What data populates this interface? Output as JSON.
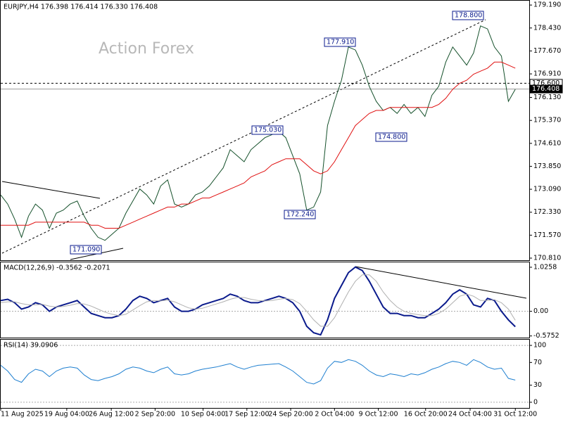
{
  "chart_data": [
    {
      "type": "line",
      "title": "EURJPY,H4  176.398 176.414 176.330 176.408",
      "watermark": "Action Forex",
      "xlim": [
        0,
        76
      ],
      "ylim": [
        170.74,
        179.31
      ],
      "yticks": [
        {
          "value": 170.81,
          "label": "170.810"
        },
        {
          "value": 171.57,
          "label": "171.570"
        },
        {
          "value": 172.33,
          "label": "172.330"
        },
        {
          "value": 173.09,
          "label": "173.090"
        },
        {
          "value": 173.85,
          "label": "173.850"
        },
        {
          "value": 174.61,
          "label": "174.610"
        },
        {
          "value": 175.37,
          "label": "175.370"
        },
        {
          "value": 176.13,
          "label": "176.130"
        },
        {
          "value": 176.91,
          "label": "176.910"
        },
        {
          "value": 177.67,
          "label": "177.670"
        },
        {
          "value": 178.43,
          "label": "178.430"
        },
        {
          "value": 179.19,
          "label": "179.190"
        }
      ],
      "price_labels": [
        {
          "value": 176.6,
          "label": "176.600"
        },
        {
          "value": 176.408,
          "label": "176.408"
        }
      ],
      "annotations": [
        "178.800",
        "177.910",
        "175.030",
        "174.800",
        "172.240",
        "171.090"
      ],
      "series": [
        {
          "color": "#14502a",
          "values": [
            172.9,
            172.6,
            172.1,
            171.5,
            172.2,
            172.6,
            172.4,
            171.8,
            172.3,
            172.4,
            172.6,
            172.7,
            172.2,
            171.8,
            171.5,
            171.4,
            171.6,
            171.8,
            172.3,
            172.7,
            173.1,
            172.9,
            172.6,
            173.2,
            173.4,
            172.6,
            172.5,
            172.6,
            172.9,
            173.0,
            173.2,
            173.5,
            173.8,
            174.4,
            174.2,
            174.0,
            174.4,
            174.6,
            174.8,
            174.9,
            175.0,
            174.8,
            174.2,
            173.6,
            172.4,
            172.5,
            173.0,
            175.2,
            176.0,
            176.7,
            177.8,
            177.7,
            177.2,
            176.5,
            176.0,
            175.7,
            175.8,
            175.6,
            175.9,
            175.6,
            175.8,
            175.5,
            176.2,
            176.5,
            177.3,
            177.8,
            177.5,
            177.2,
            177.6,
            178.5,
            178.4,
            177.8,
            177.5,
            176.0,
            176.4
          ]
        },
        {
          "color": "#e01010",
          "values": [
            171.9,
            171.9,
            171.9,
            171.9,
            171.9,
            172.0,
            172.0,
            172.0,
            172.0,
            172.0,
            172.0,
            172.0,
            172.0,
            171.9,
            171.9,
            171.8,
            171.8,
            171.8,
            171.9,
            172.0,
            172.1,
            172.2,
            172.3,
            172.4,
            172.5,
            172.5,
            172.6,
            172.6,
            172.7,
            172.8,
            172.8,
            172.9,
            173.0,
            173.1,
            173.2,
            173.3,
            173.5,
            173.6,
            173.7,
            173.9,
            174.0,
            174.1,
            174.1,
            174.1,
            173.9,
            173.7,
            173.6,
            173.7,
            174.0,
            174.4,
            174.8,
            175.2,
            175.4,
            175.6,
            175.7,
            175.7,
            175.8,
            175.8,
            175.8,
            175.8,
            175.8,
            175.8,
            175.8,
            175.9,
            176.1,
            176.4,
            176.6,
            176.7,
            176.9,
            177.0,
            177.1,
            177.3,
            177.3,
            177.2,
            177.1
          ]
        }
      ]
    },
    {
      "type": "line",
      "title": "MACD(12,26,9) -0.3562 -0.2071",
      "xlim": [
        0,
        76
      ],
      "ylim": [
        -0.63,
        1.14
      ],
      "yticks": [
        1.0258,
        {
          "value": 0,
          "label": "0.00"
        },
        -0.5752
      ],
      "series": [
        {
          "color": "#0a1a8c",
          "values": [
            0.25,
            0.28,
            0.2,
            0.05,
            0.1,
            0.2,
            0.15,
            0.0,
            0.1,
            0.15,
            0.2,
            0.25,
            0.1,
            -0.05,
            -0.1,
            -0.15,
            -0.15,
            -0.1,
            0.05,
            0.25,
            0.35,
            0.3,
            0.2,
            0.25,
            0.3,
            0.1,
            0.0,
            0.0,
            0.05,
            0.15,
            0.2,
            0.25,
            0.3,
            0.4,
            0.35,
            0.25,
            0.2,
            0.2,
            0.25,
            0.3,
            0.35,
            0.3,
            0.2,
            0.0,
            -0.35,
            -0.5,
            -0.55,
            -0.2,
            0.3,
            0.6,
            0.9,
            1.03,
            0.95,
            0.7,
            0.4,
            0.1,
            -0.05,
            -0.05,
            -0.1,
            -0.1,
            -0.15,
            -0.15,
            -0.05,
            0.05,
            0.2,
            0.4,
            0.5,
            0.4,
            0.15,
            0.1,
            0.3,
            0.25,
            0.0,
            -0.2,
            -0.36
          ]
        },
        {
          "color": "#b0b0b0",
          "values": [
            0.2,
            0.22,
            0.22,
            0.18,
            0.15,
            0.15,
            0.16,
            0.12,
            0.1,
            0.11,
            0.14,
            0.18,
            0.17,
            0.12,
            0.05,
            -0.02,
            -0.07,
            -0.1,
            -0.07,
            0.03,
            0.13,
            0.22,
            0.25,
            0.24,
            0.26,
            0.22,
            0.15,
            0.08,
            0.05,
            0.07,
            0.12,
            0.17,
            0.22,
            0.28,
            0.32,
            0.32,
            0.28,
            0.25,
            0.24,
            0.25,
            0.28,
            0.3,
            0.27,
            0.18,
            0.0,
            -0.2,
            -0.35,
            -0.35,
            -0.15,
            0.15,
            0.45,
            0.7,
            0.85,
            0.85,
            0.7,
            0.45,
            0.25,
            0.1,
            0.0,
            -0.05,
            -0.08,
            -0.1,
            -0.1,
            -0.05,
            0.05,
            0.2,
            0.35,
            0.4,
            0.35,
            0.25,
            0.25,
            0.27,
            0.2,
            0.05,
            -0.21
          ]
        }
      ]
    },
    {
      "type": "line",
      "title": "RSI(14) 39.0906",
      "xlim": [
        0,
        76
      ],
      "ylim": [
        -10,
        110
      ],
      "yticks": [
        100,
        70,
        30,
        0
      ],
      "xticks": [
        {
          "value": 0,
          "label": "11 Aug 2025"
        },
        {
          "value": 9.5,
          "label": "19 Aug 04:00"
        },
        {
          "value": 15.9,
          "label": "26 Aug 12:00"
        },
        {
          "value": 22.2,
          "label": "2 Sep 20:00"
        },
        {
          "value": 29.1,
          "label": "10 Sep 04:00"
        },
        {
          "value": 35.4,
          "label": "17 Sep 12:00"
        },
        {
          "value": 41.7,
          "label": "24 Sep 20:00"
        },
        {
          "value": 48,
          "label": "2 Oct 04:00"
        },
        {
          "value": 54.3,
          "label": "9 Oct 12:00"
        },
        {
          "value": 61.1,
          "label": "16 Oct 20:00"
        },
        {
          "value": 67.5,
          "label": "24 Oct 04:00"
        },
        {
          "value": 74,
          "label": "31 Oct 12:00"
        }
      ],
      "series": [
        {
          "color": "#1e7fd0",
          "values": [
            65,
            55,
            40,
            35,
            50,
            58,
            55,
            45,
            55,
            60,
            62,
            60,
            48,
            40,
            38,
            42,
            45,
            50,
            58,
            62,
            60,
            55,
            52,
            58,
            62,
            50,
            48,
            50,
            55,
            58,
            60,
            62,
            65,
            68,
            62,
            58,
            62,
            65,
            66,
            67,
            68,
            62,
            55,
            45,
            35,
            32,
            38,
            60,
            72,
            70,
            75,
            72,
            65,
            55,
            48,
            45,
            50,
            48,
            45,
            50,
            48,
            52,
            58,
            62,
            68,
            72,
            70,
            65,
            75,
            70,
            62,
            58,
            60,
            42,
            39
          ]
        }
      ]
    }
  ]
}
